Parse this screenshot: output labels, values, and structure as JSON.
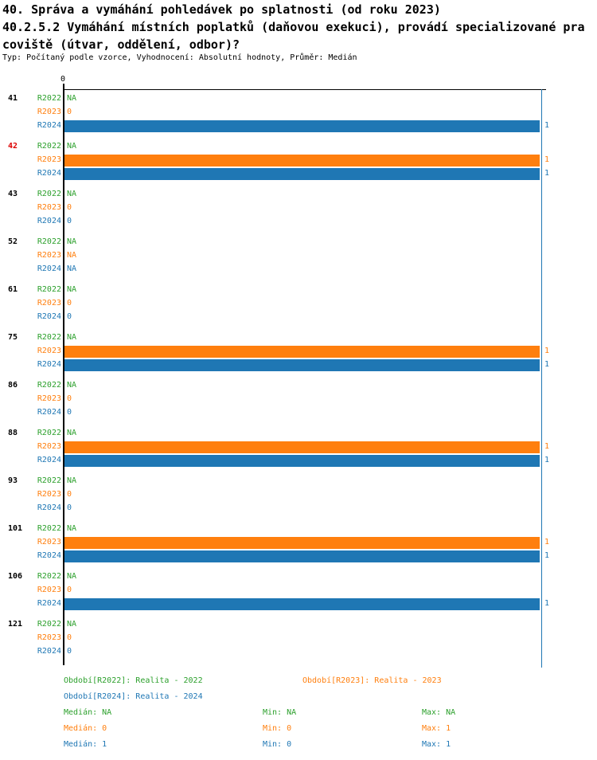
{
  "header": {
    "title_line1": "40. Správa a vymáhání pohledávek po splatnosti (od roku 2023)",
    "title_line2": "40.2.5.2 Vymáhání místních poplatků (daňovou exekuci), provádí specializované pra",
    "title_line3": "coviště (útvar, oddělení, odbor)?",
    "subtitle": "Typ: Počítaný podle vzorce, Vyhodnocení: Absolutní hodnoty, Průměr: Medián"
  },
  "colors": {
    "series": {
      "R2022": "#2ca02c",
      "R2023": "#ff7f0e",
      "R2024": "#1f77b4"
    },
    "highlight_group": "#dd0000",
    "axis": "#000000",
    "gridline": "#1f77b4"
  },
  "chart_data": {
    "type": "bar",
    "orientation": "horizontal",
    "xlim": [
      0,
      1
    ],
    "zero_tick_label": "0",
    "bar_value_label": "1",
    "series": [
      "R2022",
      "R2023",
      "R2024"
    ],
    "groups": [
      {
        "label": "41",
        "highlighted": false,
        "values": [
          "NA",
          "0",
          "1"
        ]
      },
      {
        "label": "42",
        "highlighted": true,
        "values": [
          "NA",
          "1",
          "1"
        ]
      },
      {
        "label": "43",
        "highlighted": false,
        "values": [
          "NA",
          "0",
          "0"
        ]
      },
      {
        "label": "52",
        "highlighted": false,
        "values": [
          "NA",
          "NA",
          "NA"
        ]
      },
      {
        "label": "61",
        "highlighted": false,
        "values": [
          "NA",
          "0",
          "0"
        ]
      },
      {
        "label": "75",
        "highlighted": false,
        "values": [
          "NA",
          "1",
          "1"
        ]
      },
      {
        "label": "86",
        "highlighted": false,
        "values": [
          "NA",
          "0",
          "0"
        ]
      },
      {
        "label": "88",
        "highlighted": false,
        "values": [
          "NA",
          "1",
          "1"
        ]
      },
      {
        "label": "93",
        "highlighted": false,
        "values": [
          "NA",
          "0",
          "0"
        ]
      },
      {
        "label": "101",
        "highlighted": false,
        "values": [
          "NA",
          "1",
          "1"
        ]
      },
      {
        "label": "106",
        "highlighted": false,
        "values": [
          "NA",
          "0",
          "1"
        ]
      },
      {
        "label": "121",
        "highlighted": false,
        "values": [
          "NA",
          "0",
          "0"
        ]
      }
    ]
  },
  "legend": {
    "r2022": "Období[R2022]: Realita - 2022",
    "r2023": "Období[R2023]: Realita - 2023",
    "r2024": "Období[R2024]: Realita - 2024"
  },
  "stats": {
    "r2022": {
      "median": "Medián: NA",
      "min": "Min: NA",
      "max": "Max: NA"
    },
    "r2023": {
      "median": "Medián: 0",
      "min": "Min: 0",
      "max": "Max: 1"
    },
    "r2024": {
      "median": "Medián: 1",
      "min": "Min: 0",
      "max": "Max: 1"
    }
  }
}
